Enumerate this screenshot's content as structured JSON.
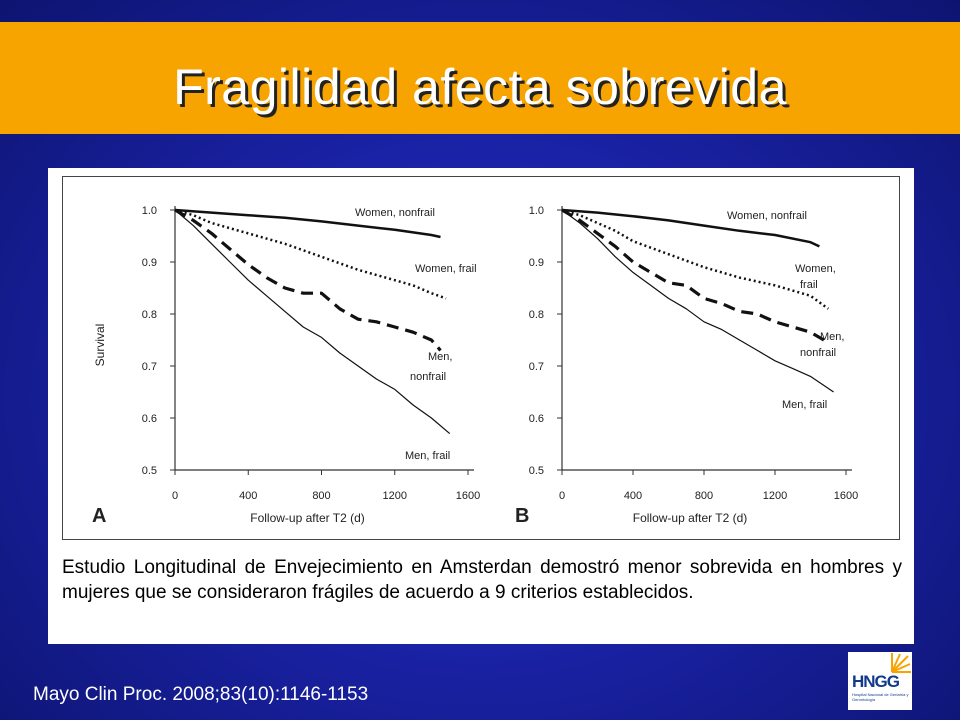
{
  "slide": {
    "title": "Fragilidad afecta sobrevida",
    "caption": "Estudio Longitudinal de Envejecimiento en Amsterdan demostró menor sobrevida en hombres y mujeres que se consideraron frágiles de acuerdo a 9 criterios establecidos.",
    "citation": "Mayo Clin Proc. 2008;83(10):1146-1153",
    "logo_text": "HNGG",
    "logo_subtext": "Hospital Nacional de Geriatría y Gerontología",
    "colors": {
      "title_bar": "#f7a300",
      "background": "#1a22a6",
      "curve": "#111111"
    }
  },
  "chart_data": [
    {
      "type": "line",
      "panel": "A",
      "xlabel": "Follow-up after T2 (d)",
      "ylabel": "Survival",
      "xticks": [
        0,
        400,
        800,
        1200,
        1600
      ],
      "yticks": [
        0.5,
        0.6,
        0.7,
        0.8,
        0.9,
        1.0
      ],
      "tick_labels_x": [
        "0",
        "400",
        "800",
        "1200",
        "1600"
      ],
      "tick_labels_y": [
        "0.5",
        "0.6",
        "0.7",
        "0.8",
        "0.9",
        "1.0"
      ],
      "xlim": [
        0,
        1600
      ],
      "ylim": [
        0.5,
        1.0
      ],
      "series": [
        {
          "name": "Women, nonfrail",
          "style": "solid-thick",
          "x": [
            0,
            200,
            400,
            600,
            800,
            1000,
            1200,
            1400,
            1450
          ],
          "y": [
            1.0,
            0.995,
            0.99,
            0.985,
            0.978,
            0.97,
            0.962,
            0.952,
            0.948
          ]
        },
        {
          "name": "Women, frail",
          "style": "dotted",
          "x": [
            0,
            100,
            200,
            400,
            600,
            800,
            1000,
            1200,
            1300,
            1400,
            1480
          ],
          "y": [
            1.0,
            0.99,
            0.975,
            0.955,
            0.935,
            0.91,
            0.885,
            0.865,
            0.855,
            0.84,
            0.83
          ]
        },
        {
          "name": "Men, nonfrail",
          "style": "dashed",
          "x": [
            0,
            100,
            200,
            300,
            400,
            500,
            600,
            700,
            800,
            900,
            1000,
            1100,
            1200,
            1300,
            1400,
            1450
          ],
          "y": [
            1.0,
            0.98,
            0.955,
            0.925,
            0.895,
            0.87,
            0.85,
            0.84,
            0.84,
            0.81,
            0.79,
            0.785,
            0.775,
            0.765,
            0.75,
            0.73
          ]
        },
        {
          "name": "Men, frail",
          "style": "solid-thin",
          "x": [
            0,
            100,
            200,
            300,
            400,
            500,
            600,
            700,
            800,
            900,
            1000,
            1100,
            1200,
            1300,
            1400,
            1500
          ],
          "y": [
            1.0,
            0.97,
            0.935,
            0.9,
            0.865,
            0.835,
            0.805,
            0.775,
            0.755,
            0.725,
            0.7,
            0.675,
            0.655,
            0.625,
            0.6,
            0.57
          ]
        }
      ],
      "labels": [
        "Women, nonfrail",
        "Women, frail",
        "Men,",
        "nonfrail",
        "Men, frail"
      ]
    },
    {
      "type": "line",
      "panel": "B",
      "xlabel": "Follow-up after T2 (d)",
      "ylabel": "",
      "xticks": [
        0,
        400,
        800,
        1200,
        1600
      ],
      "yticks": [
        0.5,
        0.6,
        0.7,
        0.8,
        0.9,
        1.0
      ],
      "tick_labels_x": [
        "0",
        "400",
        "800",
        "1200",
        "1600"
      ],
      "tick_labels_y": [
        "0.5",
        "0.6",
        "0.7",
        "0.8",
        "0.9",
        "1.0"
      ],
      "xlim": [
        0,
        1600
      ],
      "ylim": [
        0.5,
        1.0
      ],
      "series": [
        {
          "name": "Women, nonfrail",
          "style": "solid-thick",
          "x": [
            0,
            200,
            400,
            600,
            800,
            1000,
            1200,
            1400,
            1450
          ],
          "y": [
            1.0,
            0.995,
            0.988,
            0.98,
            0.97,
            0.96,
            0.952,
            0.938,
            0.93
          ]
        },
        {
          "name": "Women, frail",
          "style": "dotted",
          "x": [
            0,
            100,
            200,
            300,
            400,
            600,
            800,
            1000,
            1200,
            1400,
            1500
          ],
          "y": [
            1.0,
            0.99,
            0.975,
            0.96,
            0.94,
            0.915,
            0.89,
            0.87,
            0.855,
            0.835,
            0.81
          ]
        },
        {
          "name": "Men, nonfrail",
          "style": "dashed",
          "x": [
            0,
            100,
            200,
            300,
            400,
            500,
            600,
            700,
            800,
            900,
            1000,
            1100,
            1200,
            1300,
            1400,
            1500
          ],
          "y": [
            1.0,
            0.98,
            0.955,
            0.93,
            0.9,
            0.88,
            0.86,
            0.855,
            0.83,
            0.82,
            0.805,
            0.8,
            0.785,
            0.775,
            0.765,
            0.745
          ]
        },
        {
          "name": "Men, frail",
          "style": "solid-thin",
          "x": [
            0,
            100,
            200,
            300,
            400,
            500,
            600,
            700,
            800,
            900,
            1000,
            1100,
            1200,
            1300,
            1400,
            1530
          ],
          "y": [
            1.0,
            0.975,
            0.945,
            0.91,
            0.88,
            0.855,
            0.83,
            0.81,
            0.785,
            0.77,
            0.75,
            0.73,
            0.71,
            0.695,
            0.68,
            0.65
          ]
        }
      ],
      "labels": [
        "Women, nonfrail",
        "Women,",
        "frail",
        "Men,",
        "nonfrail",
        "Men, frail"
      ]
    }
  ]
}
